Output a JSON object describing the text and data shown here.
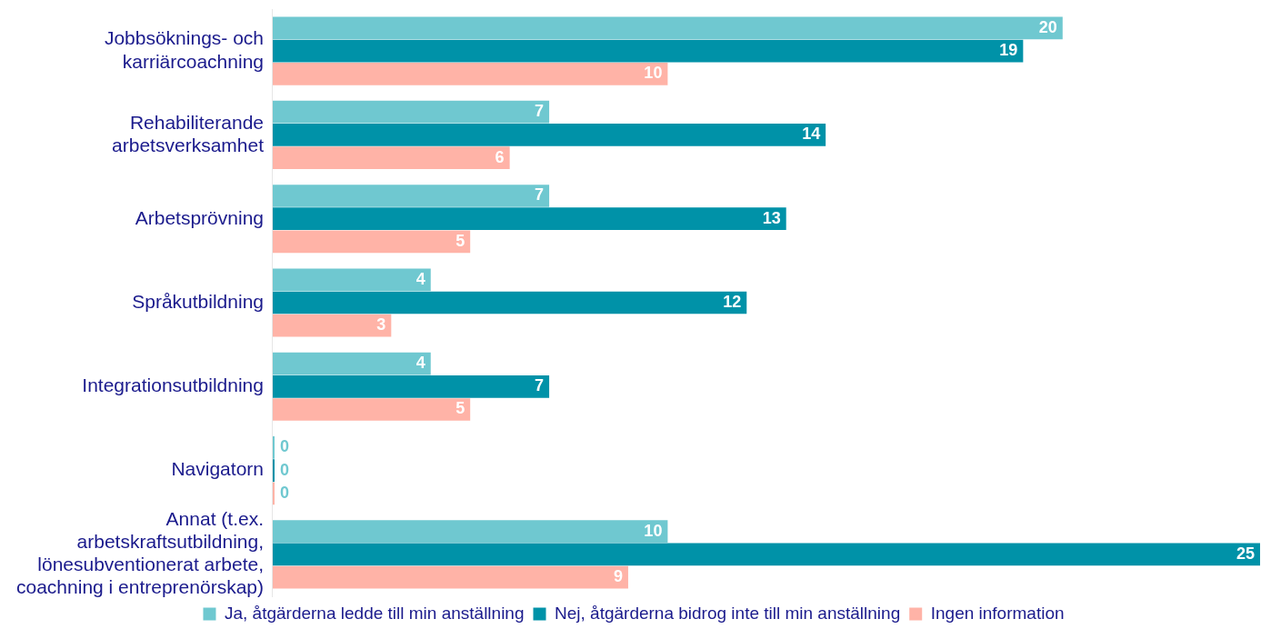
{
  "chart_data": {
    "type": "bar",
    "orientation": "horizontal",
    "categories": [
      "Jobbsöknings- och karriärcoachning",
      "Rehabiliterande arbetsverksamhet",
      "Arbetsprövning",
      "Språkutbildning",
      "Integrationsutbildning",
      "Navigatorn",
      "Annat (t.ex. arbetskraftsutbildning, lönesubventionerat arbete, coachning i entreprenörskap)"
    ],
    "series": [
      {
        "name": "Ja, åtgärderna ledde till min anställning",
        "color": "#6fc8d0",
        "values": [
          20,
          7,
          7,
          4,
          4,
          0,
          10
        ]
      },
      {
        "name": "Nej, åtgärderna bidrog inte till min anställning",
        "color": "#0092a8",
        "values": [
          19,
          14,
          13,
          12,
          7,
          0,
          25
        ]
      },
      {
        "name": "Ingen information",
        "color": "#ffb3a7",
        "values": [
          10,
          6,
          5,
          3,
          5,
          0,
          9
        ]
      }
    ],
    "xlim": [
      0,
      25
    ],
    "tick_labels": "y",
    "grid": false,
    "legend": "bottom",
    "data_labels": true
  }
}
